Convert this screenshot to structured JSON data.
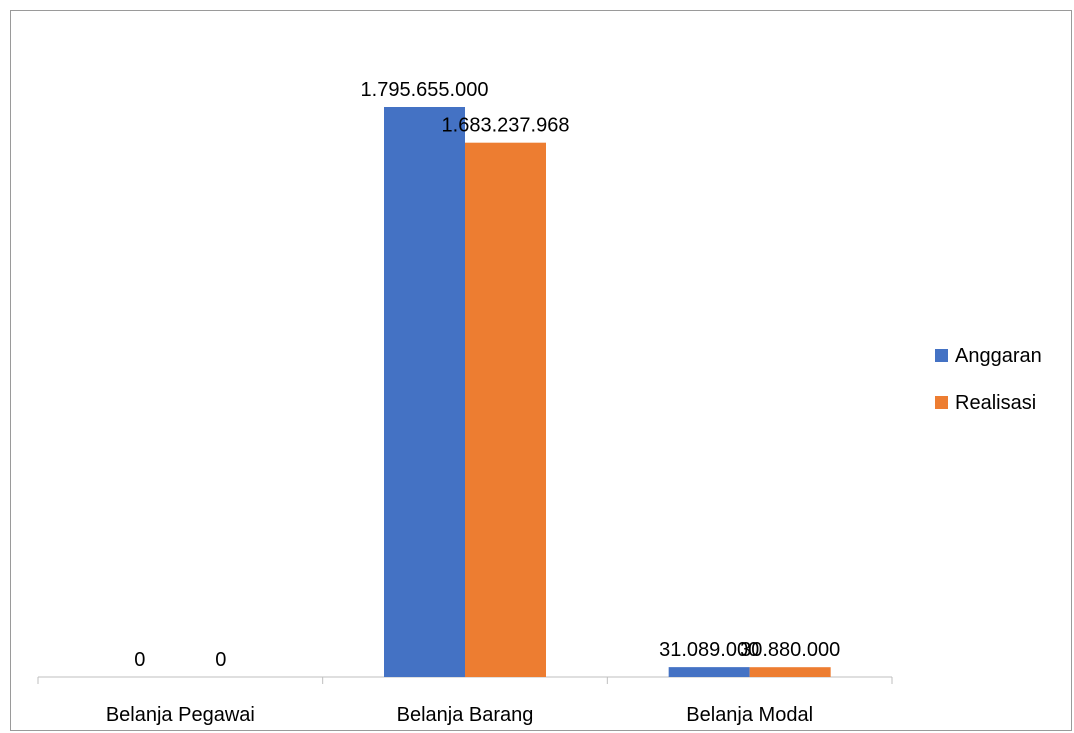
{
  "chart_data": {
    "type": "bar",
    "categories": [
      "Belanja Pegawai",
      "Belanja Barang",
      "Belanja Modal"
    ],
    "series": [
      {
        "name": "Anggaran",
        "values": [
          0,
          1795655000,
          31089000
        ],
        "labels": [
          "0",
          "1.795.655.000",
          "31.089.000"
        ],
        "color": "#4472C4"
      },
      {
        "name": "Realisasi",
        "values": [
          0,
          1683237968,
          30880000
        ],
        "labels": [
          "0",
          "1.683.237.968",
          "30.880.000"
        ],
        "color": "#ED7D31"
      }
    ],
    "ylim": [
      0,
      1795655000
    ],
    "grid": false,
    "legend_position": "right"
  }
}
